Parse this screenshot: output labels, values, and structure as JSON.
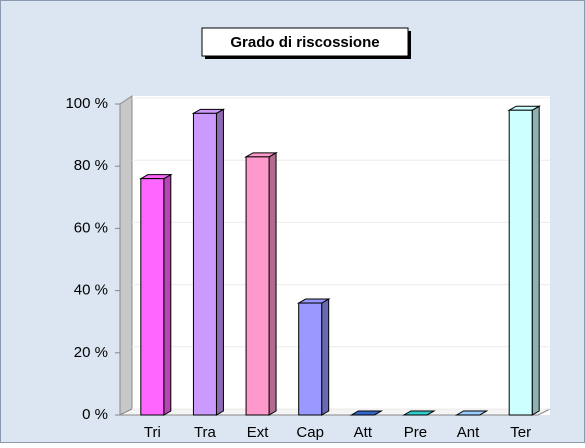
{
  "chart_data": {
    "type": "bar3d",
    "title": "Grado di riscossione",
    "categories": [
      "Tri",
      "Tra",
      "Ext",
      "Cap",
      "Att",
      "Pre",
      "Ant",
      "Ter"
    ],
    "values": [
      76,
      97,
      83,
      36,
      0,
      0,
      0,
      98
    ],
    "colors": [
      "#ff66ff",
      "#cc99ff",
      "#ff99cc",
      "#9999ff",
      "#3366cc",
      "#33cccc",
      "#99ccff",
      "#ccffff"
    ],
    "ylim": [
      0,
      100
    ],
    "yticks": [
      {
        "value": 0,
        "label": "0 %"
      },
      {
        "value": 20,
        "label": "20 %"
      },
      {
        "value": 40,
        "label": "40 %"
      },
      {
        "value": 60,
        "label": "60 %"
      },
      {
        "value": 80,
        "label": "80 %"
      },
      {
        "value": 100,
        "label": "100 %"
      }
    ],
    "grid": true
  }
}
